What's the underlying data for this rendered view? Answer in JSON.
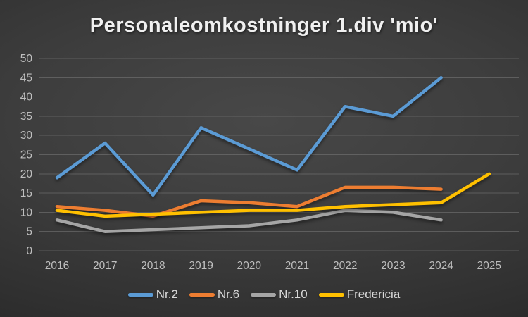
{
  "chart_data": {
    "type": "line",
    "title": "Personaleomkostninger 1.div 'mio'",
    "categories": [
      "2016",
      "2017",
      "2018",
      "2019",
      "2020",
      "2021",
      "2022",
      "2023",
      "2024",
      "2025"
    ],
    "series": [
      {
        "name": "Nr.2",
        "color": "#5B9BD5",
        "values": [
          19,
          28,
          14.5,
          32,
          26.5,
          21,
          37.5,
          35,
          45,
          null
        ]
      },
      {
        "name": "Nr.6",
        "color": "#ED7D31",
        "values": [
          11.5,
          10.5,
          9,
          13,
          12.5,
          11.5,
          16.5,
          16.5,
          16,
          null
        ]
      },
      {
        "name": "Nr.10",
        "color": "#A5A5A5",
        "values": [
          8,
          5,
          5.5,
          6,
          6.5,
          8,
          10.5,
          10,
          8,
          null
        ]
      },
      {
        "name": "Fredericia",
        "color": "#FFC000",
        "values": [
          10.5,
          9,
          9.5,
          10,
          10.5,
          10.5,
          11.5,
          12,
          12.5,
          20
        ]
      }
    ],
    "y_axis": {
      "min": 0,
      "max": 50,
      "step": 5,
      "ticks": [
        "0",
        "5",
        "10",
        "15",
        "20",
        "25",
        "30",
        "35",
        "40",
        "45",
        "50"
      ]
    },
    "x_axis": {
      "ticks": [
        "2016",
        "2017",
        "2018",
        "2019",
        "2020",
        "2021",
        "2022",
        "2023",
        "2024",
        "2025"
      ]
    },
    "grid": true,
    "legend_position": "bottom",
    "colors": {
      "background": "#3d3d3d",
      "gridline": "#7a7a7a",
      "axis_text": "#bfbfbf",
      "title_text": "#f0f0f0",
      "legend_text": "#d9d9d9"
    }
  }
}
